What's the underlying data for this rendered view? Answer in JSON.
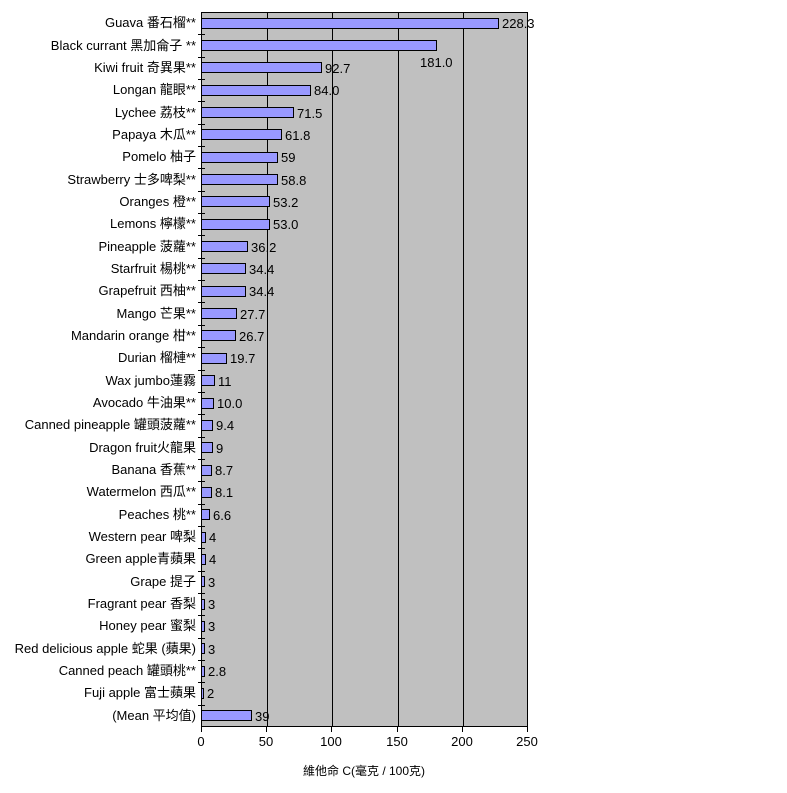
{
  "chart_data": {
    "type": "bar",
    "orientation": "horizontal",
    "title": "",
    "xlabel": "維他命 C(毫克 / 100克)",
    "ylabel": "",
    "xlim": [
      0,
      250
    ],
    "xticks": [
      0,
      50,
      100,
      150,
      200,
      250
    ],
    "grid": true,
    "legend": "none",
    "plot_bg_color": "#C0C0C0",
    "bar_color": "#9999FF",
    "bar_border_color": "#000000",
    "gridline_color": "#000000",
    "text_color": "#000000",
    "categories": [
      "Guava 番石榴**",
      "Black currant 黑加侖子 **",
      "Kiwi fruit 奇異果**",
      "Longan 龍眼**",
      "Lychee 荔枝**",
      "Papaya 木瓜**",
      "Pomelo 柚子",
      "Strawberry 士多啤梨**",
      "Oranges 橙**",
      "Lemons 檸檬**",
      "Pineapple 菠蘿**",
      "Starfruit 楊桃**",
      "Grapefruit 西柚**",
      "Mango 芒果**",
      "Mandarin orange 柑**",
      "Durian 榴槤**",
      "Wax jumbo蓮霧",
      "Avocado 牛油果**",
      "Canned pineapple 罐頭菠蘿**",
      "Dragon fruit火龍果",
      "Banana 香蕉**",
      "Watermelon 西瓜**",
      "Peaches 桃**",
      "Western pear 啤梨",
      "Green apple青蘋果",
      "Grape 提子",
      "Fragrant pear 香梨",
      "Honey pear 蜜梨",
      "Red delicious apple 蛇果 (蘋果)",
      "Canned peach 罐頭桃**",
      "Fuji apple 富士蘋果",
      "(Mean 平均值)"
    ],
    "values": [
      228.3,
      181.0,
      92.7,
      84.0,
      71.5,
      61.8,
      59,
      58.8,
      53.2,
      53.0,
      36.2,
      34.4,
      34.4,
      27.7,
      26.7,
      19.7,
      11,
      10.0,
      9.4,
      9,
      8.7,
      8.1,
      6.6,
      4,
      4,
      3,
      3,
      3,
      3,
      2.8,
      2,
      39
    ],
    "value_labels": [
      "228.3",
      "181.0",
      "92.7",
      "84.0",
      "71.5",
      "61.8",
      "59",
      "58.8",
      "53.2",
      "53.0",
      "36.2",
      "34.4",
      "34.4",
      "27.7",
      "26.7",
      "19.7",
      "11",
      "10.0",
      "9.4",
      "9",
      "8.7",
      "8.1",
      "6.6",
      "4",
      "4",
      "3",
      "3",
      "3",
      "3",
      "2.8",
      "2",
      "39"
    ],
    "value_label_position_default": "right-of-bar-end",
    "value_label_overrides": {
      "1": "below-bar-end"
    }
  }
}
